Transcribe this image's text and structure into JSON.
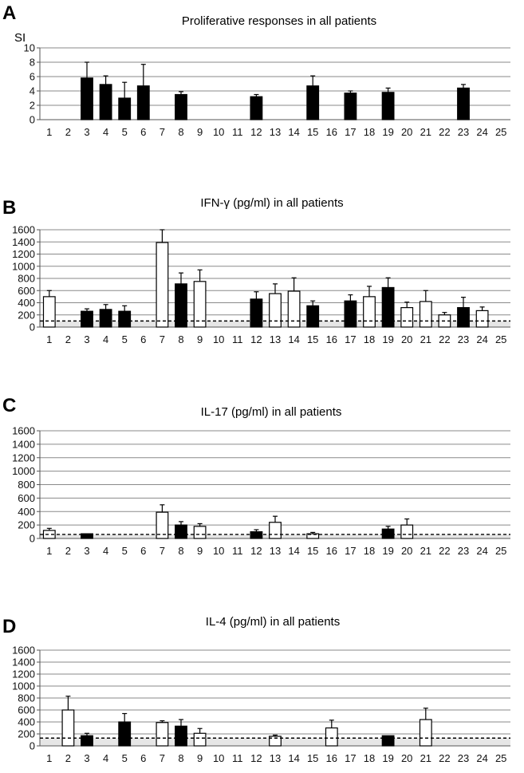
{
  "figure": {
    "panels": [
      "A",
      "B",
      "C",
      "D"
    ]
  },
  "chart_data": [
    {
      "panel": "A",
      "type": "bar",
      "title": "Proliferative responses in all patients",
      "ylabel": "SI",
      "xlabel": "",
      "categories": [
        "1",
        "2",
        "3",
        "4",
        "5",
        "6",
        "7",
        "8",
        "9",
        "10",
        "11",
        "12",
        "13",
        "14",
        "15",
        "16",
        "17",
        "18",
        "19",
        "20",
        "21",
        "22",
        "23",
        "24",
        "25"
      ],
      "ylim": [
        0,
        10
      ],
      "yticks": [
        0,
        2,
        4,
        6,
        8,
        10
      ],
      "grid": true,
      "threshold": null,
      "bars": [
        {
          "x": "3",
          "value": 5.8,
          "error": 2.2,
          "fill": "black"
        },
        {
          "x": "4",
          "value": 4.9,
          "error": 1.2,
          "fill": "black"
        },
        {
          "x": "5",
          "value": 3.0,
          "error": 2.2,
          "fill": "black"
        },
        {
          "x": "6",
          "value": 4.7,
          "error": 3.0,
          "fill": "black"
        },
        {
          "x": "8",
          "value": 3.5,
          "error": 0.4,
          "fill": "black"
        },
        {
          "x": "12",
          "value": 3.2,
          "error": 0.3,
          "fill": "black"
        },
        {
          "x": "15",
          "value": 4.7,
          "error": 1.4,
          "fill": "black"
        },
        {
          "x": "17",
          "value": 3.7,
          "error": 0.3,
          "fill": "black"
        },
        {
          "x": "19",
          "value": 3.8,
          "error": 0.6,
          "fill": "black"
        },
        {
          "x": "23",
          "value": 4.4,
          "error": 0.5,
          "fill": "black"
        }
      ]
    },
    {
      "panel": "B",
      "type": "bar",
      "title": "IFN-γ  (pg/ml) in all patients",
      "ylabel": "",
      "xlabel": "",
      "categories": [
        "1",
        "2",
        "3",
        "4",
        "5",
        "6",
        "7",
        "8",
        "9",
        "10",
        "11",
        "12",
        "13",
        "14",
        "15",
        "16",
        "17",
        "18",
        "19",
        "20",
        "21",
        "22",
        "23",
        "24",
        "25"
      ],
      "ylim": [
        0,
        1600
      ],
      "yticks": [
        0,
        200,
        400,
        600,
        800,
        1000,
        1200,
        1400,
        1600
      ],
      "grid": true,
      "threshold": 100,
      "bars": [
        {
          "x": "1",
          "value": 500,
          "error": 100,
          "fill": "white"
        },
        {
          "x": "3",
          "value": 260,
          "error": 40,
          "fill": "black"
        },
        {
          "x": "4",
          "value": 290,
          "error": 80,
          "fill": "black"
        },
        {
          "x": "5",
          "value": 260,
          "error": 90,
          "fill": "black"
        },
        {
          "x": "7",
          "value": 1390,
          "error": 210,
          "fill": "white"
        },
        {
          "x": "8",
          "value": 710,
          "error": 180,
          "fill": "black"
        },
        {
          "x": "9",
          "value": 750,
          "error": 190,
          "fill": "white"
        },
        {
          "x": "12",
          "value": 460,
          "error": 120,
          "fill": "black"
        },
        {
          "x": "13",
          "value": 550,
          "error": 160,
          "fill": "white"
        },
        {
          "x": "14",
          "value": 590,
          "error": 220,
          "fill": "white"
        },
        {
          "x": "15",
          "value": 350,
          "error": 80,
          "fill": "black"
        },
        {
          "x": "17",
          "value": 430,
          "error": 100,
          "fill": "black"
        },
        {
          "x": "18",
          "value": 500,
          "error": 170,
          "fill": "white"
        },
        {
          "x": "19",
          "value": 650,
          "error": 160,
          "fill": "black"
        },
        {
          "x": "20",
          "value": 320,
          "error": 90,
          "fill": "white"
        },
        {
          "x": "21",
          "value": 420,
          "error": 180,
          "fill": "white"
        },
        {
          "x": "22",
          "value": 200,
          "error": 40,
          "fill": "white"
        },
        {
          "x": "23",
          "value": 320,
          "error": 170,
          "fill": "black"
        },
        {
          "x": "24",
          "value": 270,
          "error": 60,
          "fill": "white"
        }
      ]
    },
    {
      "panel": "C",
      "type": "bar",
      "title": "IL-17 (pg/ml) in all patients",
      "ylabel": "",
      "xlabel": "",
      "categories": [
        "1",
        "2",
        "3",
        "4",
        "5",
        "6",
        "7",
        "8",
        "9",
        "10",
        "11",
        "12",
        "13",
        "14",
        "15",
        "16",
        "17",
        "18",
        "19",
        "20",
        "21",
        "22",
        "23",
        "24",
        "25"
      ],
      "ylim": [
        0,
        1600
      ],
      "yticks": [
        0,
        200,
        400,
        600,
        800,
        1000,
        1200,
        1400,
        1600
      ],
      "grid": true,
      "threshold": 60,
      "bars": [
        {
          "x": "1",
          "value": 120,
          "error": 30,
          "fill": "white"
        },
        {
          "x": "3",
          "value": 70,
          "error": 0,
          "fill": "black"
        },
        {
          "x": "7",
          "value": 390,
          "error": 110,
          "fill": "white"
        },
        {
          "x": "8",
          "value": 200,
          "error": 50,
          "fill": "black"
        },
        {
          "x": "9",
          "value": 180,
          "error": 40,
          "fill": "white"
        },
        {
          "x": "12",
          "value": 100,
          "error": 30,
          "fill": "black"
        },
        {
          "x": "13",
          "value": 240,
          "error": 90,
          "fill": "white"
        },
        {
          "x": "15",
          "value": 70,
          "error": 20,
          "fill": "white"
        },
        {
          "x": "19",
          "value": 140,
          "error": 40,
          "fill": "black"
        },
        {
          "x": "20",
          "value": 200,
          "error": 90,
          "fill": "white"
        }
      ]
    },
    {
      "panel": "D",
      "type": "bar",
      "title": "IL-4 (pg/ml) in all patients",
      "ylabel": "",
      "xlabel": "",
      "categories": [
        "1",
        "2",
        "3",
        "4",
        "5",
        "6",
        "7",
        "8",
        "9",
        "10",
        "11",
        "12",
        "13",
        "14",
        "15",
        "16",
        "17",
        "18",
        "19",
        "20",
        "21",
        "22",
        "23",
        "24",
        "25"
      ],
      "ylim": [
        0,
        1600
      ],
      "yticks": [
        0,
        200,
        400,
        600,
        800,
        1000,
        1200,
        1400,
        1600
      ],
      "grid": true,
      "threshold": 130,
      "bars": [
        {
          "x": "2",
          "value": 600,
          "error": 230,
          "fill": "white"
        },
        {
          "x": "3",
          "value": 170,
          "error": 40,
          "fill": "black"
        },
        {
          "x": "5",
          "value": 400,
          "error": 140,
          "fill": "black"
        },
        {
          "x": "7",
          "value": 390,
          "error": 30,
          "fill": "white"
        },
        {
          "x": "8",
          "value": 330,
          "error": 110,
          "fill": "black"
        },
        {
          "x": "9",
          "value": 210,
          "error": 80,
          "fill": "white"
        },
        {
          "x": "13",
          "value": 160,
          "error": 20,
          "fill": "white"
        },
        {
          "x": "16",
          "value": 300,
          "error": 130,
          "fill": "white"
        },
        {
          "x": "19",
          "value": 170,
          "error": 0,
          "fill": "black"
        },
        {
          "x": "21",
          "value": 440,
          "error": 190,
          "fill": "white"
        }
      ]
    }
  ]
}
